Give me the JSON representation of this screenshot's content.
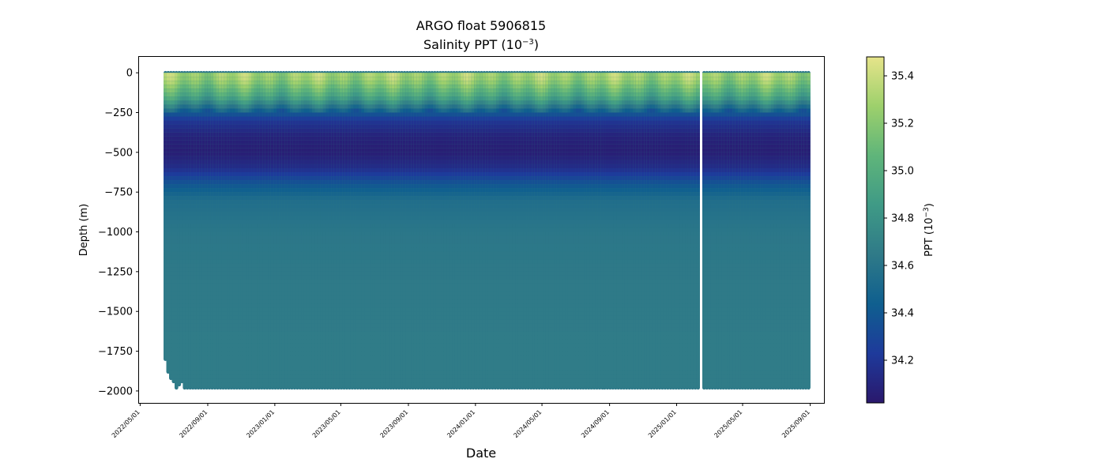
{
  "chart_data": {
    "type": "scatter",
    "title_line1": "ARGO float 5906815",
    "title_line2": "Salinity PPT (10",
    "title_line2_exp": "−3",
    "title_line2_close": ")",
    "xlabel": "Date",
    "ylabel": "Depth (m)",
    "colorbar_label": "PPT (10",
    "colorbar_label_exp": "−3",
    "colorbar_label_close": ")",
    "colormap": "haline",
    "colormap_stops": [
      "#2a186c",
      "#1e3a9b",
      "#0f5f8f",
      "#2f7a88",
      "#3f9a86",
      "#5fb57a",
      "#9dd06c",
      "#e6e48a"
    ],
    "ylim": [
      -2075,
      100
    ],
    "yticks": [
      0,
      -250,
      -500,
      -750,
      -1000,
      -1250,
      -1500,
      -1750,
      -2000
    ],
    "ytick_labels": [
      "0",
      "−250",
      "−500",
      "−750",
      "−1000",
      "−1250",
      "−1500",
      "−1750",
      "−2000"
    ],
    "xlim": [
      "2022-04-29",
      "2025-09-26"
    ],
    "xtick_labels": [
      "2022/05/01",
      "2022/09/01",
      "2023/01/01",
      "2023/05/01",
      "2023/09/01",
      "2024/01/01",
      "2024/05/01",
      "2024/09/01",
      "2025/01/01",
      "2025/05/01",
      "2025/09/01"
    ],
    "xtick_dates": [
      "2022-05-01",
      "2022-09-01",
      "2023-01-01",
      "2023-05-01",
      "2023-09-01",
      "2024-01-01",
      "2024-05-01",
      "2024-09-01",
      "2025-01-01",
      "2025-05-01",
      "2025-09-01"
    ],
    "clim": [
      34.02,
      35.48
    ],
    "cbar_ticks": [
      34.2,
      34.4,
      34.6,
      34.8,
      35.0,
      35.2,
      35.4
    ],
    "cbar_tick_labels": [
      "34.2",
      "34.4",
      "34.6",
      "34.8",
      "35.0",
      "35.2",
      "35.4"
    ],
    "profile_interval_days": 5,
    "segments": [
      {
        "start": "2022-06-16",
        "end": "2024-08-19"
      },
      {
        "start": "2024-08-23",
        "end": "2025-02-13"
      },
      {
        "start": "2025-02-20",
        "end": "2025-09-01"
      }
    ],
    "early_max_depths": [
      -1800,
      -1880,
      -1920,
      -1940,
      -1980,
      -1960,
      -1940
    ],
    "typical_max_depth": -1980,
    "salinity_profile": {
      "depth": [
        0,
        -50,
        -100,
        -150,
        -200,
        -250,
        -300,
        -400,
        -500,
        -600,
        -700,
        -800,
        -1000,
        -1250,
        -1500,
        -1750,
        -2000
      ],
      "salinity": [
        35.3,
        35.25,
        35.1,
        34.95,
        34.7,
        34.4,
        34.2,
        34.08,
        34.05,
        34.15,
        34.38,
        34.55,
        34.62,
        34.64,
        34.65,
        34.66,
        34.66
      ]
    }
  }
}
